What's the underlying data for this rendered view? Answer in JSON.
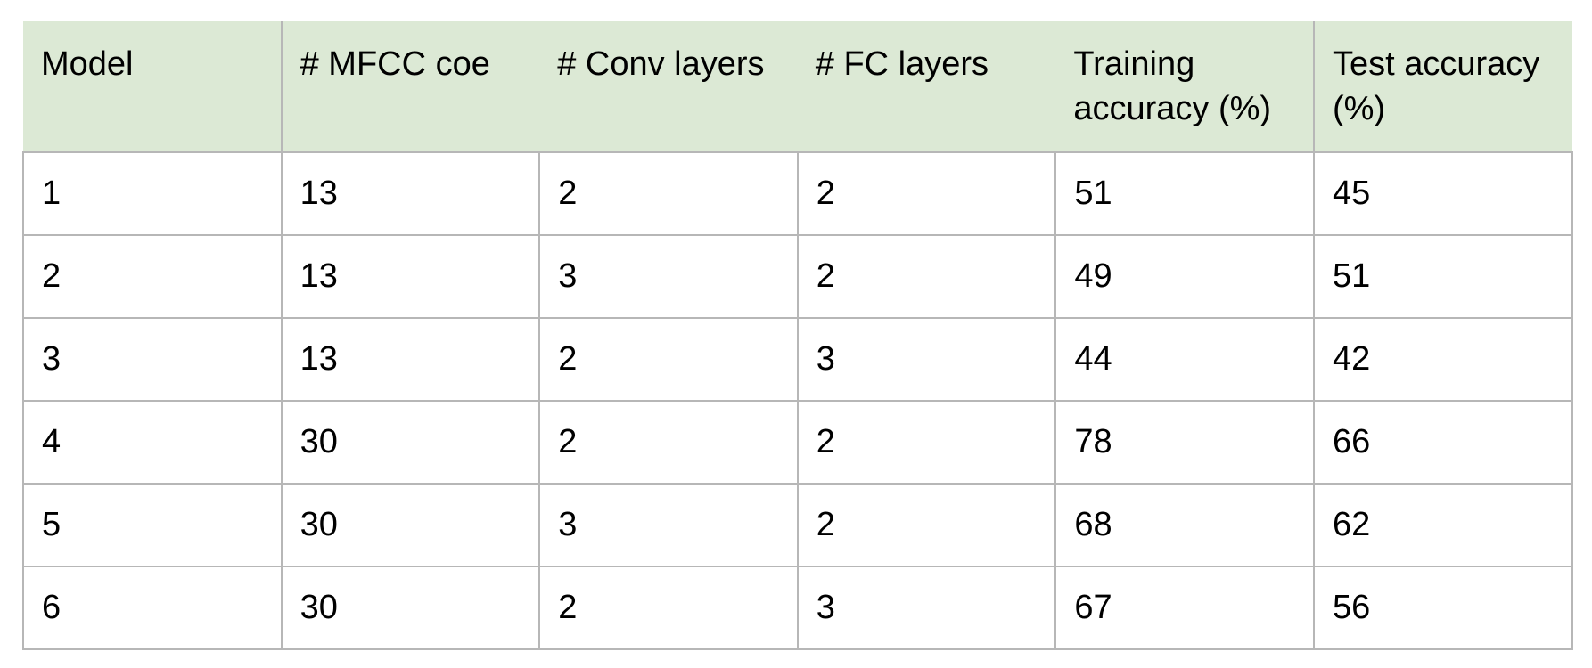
{
  "table": {
    "headers": [
      "Model",
      "# MFCC coe",
      "# Conv layers",
      "# FC layers",
      "Training accuracy (%)",
      "Test accuracy (%)"
    ],
    "rows": [
      [
        "1",
        "13",
        "2",
        "2",
        "51",
        "45"
      ],
      [
        "2",
        "13",
        "3",
        "2",
        "49",
        "51"
      ],
      [
        "3",
        "13",
        "2",
        "3",
        "44",
        "42"
      ],
      [
        "4",
        "30",
        "2",
        "2",
        "78",
        "66"
      ],
      [
        "5",
        "30",
        "3",
        "2",
        "68",
        "62"
      ],
      [
        "6",
        "30",
        "2",
        "3",
        "67",
        "56"
      ]
    ]
  }
}
